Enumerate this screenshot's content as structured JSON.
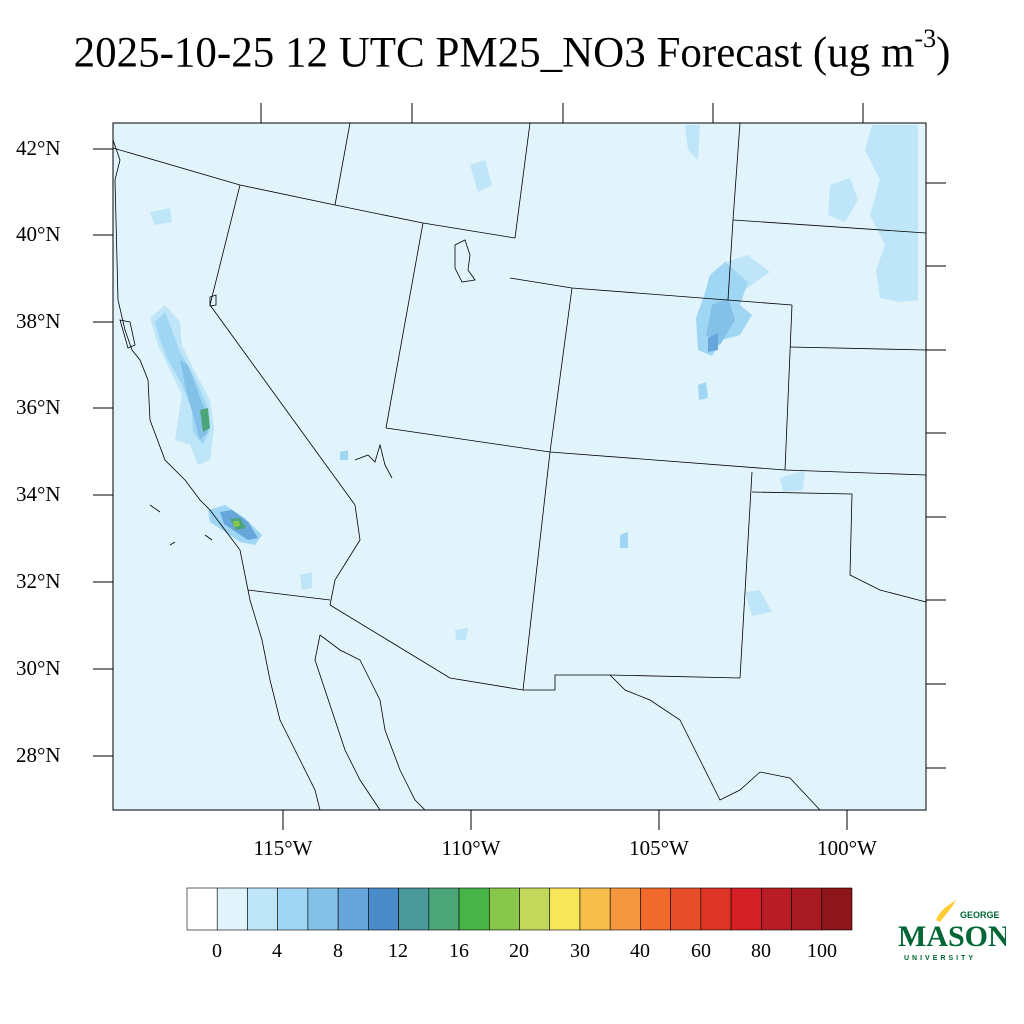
{
  "title": {
    "text": "2025-10-25 12 UTC PM25_NO3 Forecast (ug m",
    "superscript": "-3",
    "closing": ")"
  },
  "map": {
    "background_color": "#e1f3fb",
    "region": "Southwestern United States",
    "lat_labels": [
      "42°N",
      "40°N",
      "38°N",
      "36°N",
      "34°N",
      "32°N",
      "30°N",
      "28°N"
    ],
    "lon_labels": [
      "115°W",
      "110°W",
      "105°W",
      "100°W"
    ]
  },
  "colorbar": {
    "colors": [
      "#ffffff",
      "#e1f3fb",
      "#bfe6f8",
      "#9fd6f3",
      "#83c1e8",
      "#66a6db",
      "#4a8bca",
      "#4a9a9c",
      "#4aa578",
      "#48b448",
      "#89c64c",
      "#c3d85a",
      "#f7e65a",
      "#f6bf4b",
      "#f4973e",
      "#f06a2c",
      "#e64e2a",
      "#dc3426",
      "#d41f26",
      "#b81c24",
      "#a81a22",
      "#8e1519"
    ],
    "labels": [
      "0",
      "4",
      "8",
      "12",
      "16",
      "20",
      "30",
      "40",
      "60",
      "80",
      "100"
    ]
  },
  "logo": {
    "line1": "GEORGE",
    "line2": "MASON",
    "line3": "UNIVERSITY",
    "green": "#006633",
    "gold": "#ffcc33"
  }
}
